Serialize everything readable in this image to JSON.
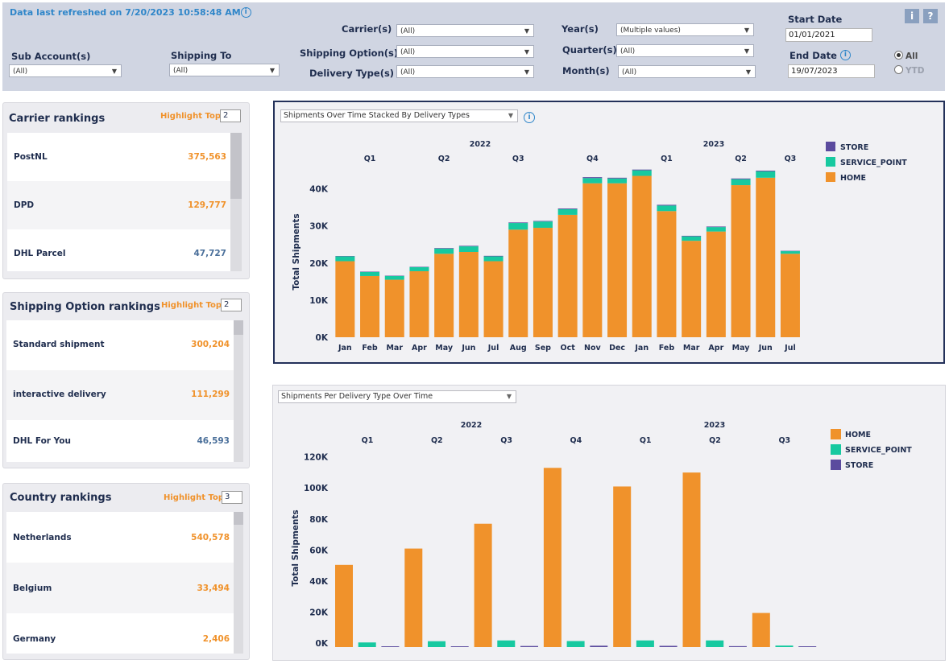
{
  "header": {
    "refresh_text": "Data last refreshed on 7/20/2023 10:58:48 AM",
    "info_glyph": "i",
    "filters": {
      "sub_account": {
        "label": "Sub Account(s)",
        "value": "(All)"
      },
      "shipping_to": {
        "label": "Shipping To",
        "value": "(All)"
      },
      "carrier": {
        "label": "Carrier(s)",
        "value": "(All)"
      },
      "shipping_option": {
        "label": "Shipping Option(s)",
        "value": "(All)"
      },
      "delivery_type": {
        "label": "Delivery Type(s)",
        "value": "(All)"
      },
      "year": {
        "label": "Year(s)",
        "value": "(Multiple values)"
      },
      "quarter": {
        "label": "Quarter(s)",
        "value": "(All)"
      },
      "month": {
        "label": "Month(s)",
        "value": "(All)"
      }
    },
    "start_date": {
      "label": "Start Date",
      "value": "01/01/2021"
    },
    "end_date": {
      "label": "End Date",
      "value": "19/07/2023"
    },
    "radio": {
      "all": "All",
      "ytd": "YTD",
      "selected": "All"
    },
    "info_button": "i",
    "help_button": "?"
  },
  "carrier_rankings": {
    "title": "Carrier rankings",
    "highlight_label": "Highlight Top",
    "highlight_value": "2",
    "items": [
      {
        "name": "PostNL",
        "value": "375,563",
        "color": "#f0922b"
      },
      {
        "name": "DPD",
        "value": "129,777",
        "color": "#f0922b"
      },
      {
        "name": "DHL Parcel",
        "value": "47,727",
        "color": "#4a6f9a"
      }
    ]
  },
  "shipping_rankings": {
    "title": "Shipping Option  rankings",
    "highlight_label": "Highlight Top",
    "highlight_value": "2",
    "items": [
      {
        "name": "Standard shipment",
        "value": "300,204",
        "color": "#f0922b"
      },
      {
        "name": "interactive delivery",
        "value": "111,299",
        "color": "#f0922b"
      },
      {
        "name": "DHL For You",
        "value": "46,593",
        "color": "#4a6f9a"
      }
    ]
  },
  "country_rankings": {
    "title": "Country rankings",
    "highlight_label": "Highlight Top",
    "highlight_value": "3",
    "items": [
      {
        "name": "Netherlands",
        "value": "540,578",
        "color": "#f0922b"
      },
      {
        "name": "Belgium",
        "value": "33,494",
        "color": "#f0922b"
      },
      {
        "name": "Germany",
        "value": "2,406",
        "color": "#f0922b"
      }
    ]
  },
  "colors": {
    "home": "#f0922b",
    "service_point": "#17c9a0",
    "store": "#5b4b9e"
  },
  "chart_data": [
    {
      "type": "bar",
      "stacked": true,
      "selector": "Shipments Over Time Stacked By Delivery Types",
      "ylabel": "Total Shipments",
      "ylim": [
        0,
        46000
      ],
      "yticks": [
        0,
        10000,
        20000,
        30000,
        40000
      ],
      "ytick_labels": [
        "0K",
        "10K",
        "20K",
        "30K",
        "40K"
      ],
      "years": [
        {
          "label": "2022",
          "start": 0,
          "end": 12
        },
        {
          "label": "2023",
          "start": 12,
          "end": 19
        }
      ],
      "quarters": [
        {
          "label": "Q1",
          "start": 0,
          "end": 3
        },
        {
          "label": "Q2",
          "start": 3,
          "end": 6
        },
        {
          "label": "Q3",
          "start": 6,
          "end": 9
        },
        {
          "label": "Q4",
          "start": 9,
          "end": 12
        },
        {
          "label": "Q1",
          "start": 12,
          "end": 15
        },
        {
          "label": "Q2",
          "start": 15,
          "end": 18
        },
        {
          "label": "Q3",
          "start": 18,
          "end": 19
        }
      ],
      "categories": [
        "Jan",
        "Feb",
        "Mar",
        "Apr",
        "May",
        "Jun",
        "Jul",
        "Aug",
        "Sep",
        "Oct",
        "Nov",
        "Dec",
        "Jan",
        "Feb",
        "Mar",
        "Apr",
        "May",
        "Jun",
        "Jul"
      ],
      "legend": [
        "STORE",
        "SERVICE_POINT",
        "HOME"
      ],
      "series": [
        {
          "name": "HOME",
          "color": "#f0922b",
          "values": [
            20500,
            16500,
            15500,
            17800,
            22500,
            23000,
            20500,
            29000,
            29500,
            33000,
            41500,
            41500,
            43500,
            34000,
            26000,
            28500,
            41000,
            43000,
            22500
          ]
        },
        {
          "name": "SERVICE_POINT",
          "color": "#17c9a0",
          "values": [
            1300,
            1100,
            1000,
            1100,
            1400,
            1500,
            1300,
            1800,
            1700,
            1500,
            1400,
            1300,
            1500,
            1500,
            1200,
            1200,
            1600,
            1700,
            700
          ]
        },
        {
          "name": "STORE",
          "color": "#5b4b9e",
          "values": [
            100,
            100,
            100,
            100,
            150,
            150,
            150,
            150,
            150,
            200,
            250,
            200,
            200,
            200,
            150,
            150,
            200,
            200,
            100
          ]
        }
      ]
    },
    {
      "type": "bar",
      "grouped": true,
      "selector": "Shipments Per Delivery Type Over Time",
      "ylabel": "Total Shipments",
      "ylim": [
        0,
        125000
      ],
      "yticks": [
        0,
        20000,
        40000,
        60000,
        80000,
        100000,
        120000
      ],
      "ytick_labels": [
        "0K",
        "20K",
        "40K",
        "60K",
        "80K",
        "100K",
        "120K"
      ],
      "years": [
        {
          "label": "2022",
          "start": 0,
          "end": 4
        },
        {
          "label": "2023",
          "start": 4,
          "end": 7
        }
      ],
      "categories": [
        "Q1",
        "Q2",
        "Q3",
        "Q4",
        "Q1",
        "Q2",
        "Q3"
      ],
      "legend": [
        "HOME",
        "SERVICE_POINT",
        "STORE"
      ],
      "series": [
        {
          "name": "HOME",
          "color": "#f0922b",
          "values": [
            53000,
            63500,
            79500,
            115500,
            103500,
            112500,
            22000
          ]
        },
        {
          "name": "SERVICE_POINT",
          "color": "#17c9a0",
          "values": [
            3000,
            3800,
            4300,
            3900,
            4300,
            4300,
            1000
          ]
        },
        {
          "name": "STORE",
          "color": "#5b4b9e",
          "values": [
            400,
            500,
            700,
            900,
            800,
            600,
            100
          ]
        }
      ]
    }
  ]
}
